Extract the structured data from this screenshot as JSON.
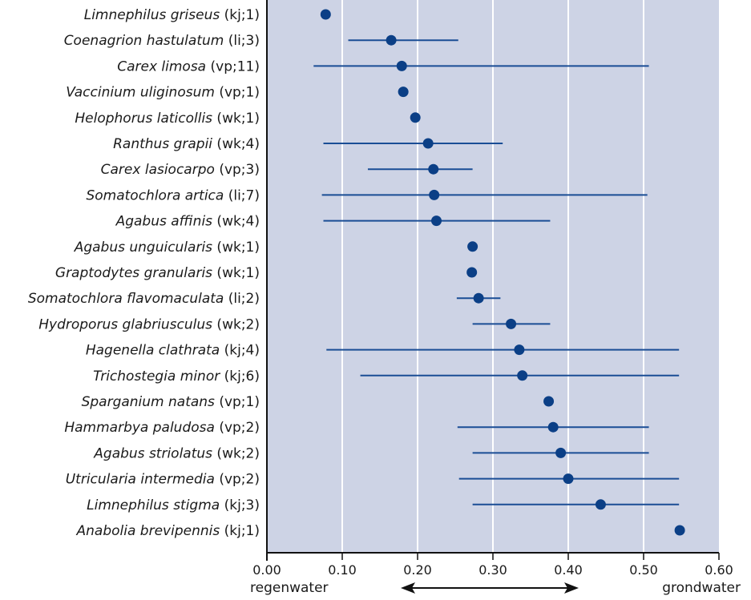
{
  "chart_data": {
    "type": "scatter",
    "subtype": "dot-with-range",
    "xlim": [
      0,
      0.6
    ],
    "xticks": [
      "0.00",
      "0.10",
      "0.20",
      "0.30",
      "0.40",
      "0.50",
      "0.60"
    ],
    "grid": "vertical",
    "colors": {
      "plot_background": "#cdd3e5",
      "gridline": "#ffffff",
      "marker": "#0b3f86",
      "range_line": "#1a4d95",
      "axis": "#111111"
    },
    "xlabel_left": "regenwater",
    "xlabel_right": "grondwater",
    "items": [
      {
        "species": "Limnephilus griseus",
        "code": "(kj;1)",
        "value": 0.078,
        "min": null,
        "max": null
      },
      {
        "species": "Coenagrion hastulatum",
        "code": "(li;3)",
        "value": 0.165,
        "min": 0.108,
        "max": 0.254
      },
      {
        "species": "Carex limosa",
        "code": "(vp;11)",
        "value": 0.179,
        "min": 0.062,
        "max": 0.507
      },
      {
        "species": "Vaccinium uliginosum",
        "code": "(vp;1)",
        "value": 0.181,
        "min": null,
        "max": null
      },
      {
        "species": "Helophorus laticollis",
        "code": "(wk;1)",
        "value": 0.197,
        "min": null,
        "max": null
      },
      {
        "species": "Ranthus grapii",
        "code": "(wk;4)",
        "value": 0.214,
        "min": 0.075,
        "max": 0.313
      },
      {
        "species": "Carex lasiocarpo",
        "code": "(vp;3)",
        "value": 0.221,
        "min": 0.134,
        "max": 0.273
      },
      {
        "species": "Somatochlora artica",
        "code": "(li;7)",
        "value": 0.222,
        "min": 0.073,
        "max": 0.505
      },
      {
        "species": "Agabus affinis",
        "code": "(wk;4)",
        "value": 0.225,
        "min": 0.075,
        "max": 0.376
      },
      {
        "species": "Agabus unguicularis",
        "code": "(wk;1)",
        "value": 0.273,
        "min": null,
        "max": null
      },
      {
        "species": "Graptodytes granularis",
        "code": "(wk;1)",
        "value": 0.272,
        "min": null,
        "max": null
      },
      {
        "species": "Somatochlora flavomaculata",
        "code": "(li;2)",
        "value": 0.281,
        "min": 0.252,
        "max": 0.31
      },
      {
        "species": "Hydroporus glabriusculus",
        "code": "(wk;2)",
        "value": 0.324,
        "min": 0.273,
        "max": 0.376
      },
      {
        "species": "Hagenella clathrata",
        "code": "(kj;4)",
        "value": 0.335,
        "min": 0.079,
        "max": 0.547
      },
      {
        "species": "Trichostegia minor",
        "code": "(kj;6)",
        "value": 0.339,
        "min": 0.124,
        "max": 0.547
      },
      {
        "species": "Sparganium natans",
        "code": "(vp;1)",
        "value": 0.374,
        "min": null,
        "max": null
      },
      {
        "species": "Hammarbya paludosa",
        "code": "(vp;2)",
        "value": 0.38,
        "min": 0.253,
        "max": 0.507
      },
      {
        "species": "Agabus striolatus",
        "code": "(wk;2)",
        "value": 0.39,
        "min": 0.273,
        "max": 0.507
      },
      {
        "species": "Utricularia intermedia",
        "code": "(vp;2)",
        "value": 0.4,
        "min": 0.255,
        "max": 0.547
      },
      {
        "species": "Limnephilus stigma",
        "code": "(kj;3)",
        "value": 0.443,
        "min": 0.273,
        "max": 0.547
      },
      {
        "species": "Anabolia brevipennis",
        "code": "(kj;1)",
        "value": 0.548,
        "min": null,
        "max": null
      }
    ]
  }
}
